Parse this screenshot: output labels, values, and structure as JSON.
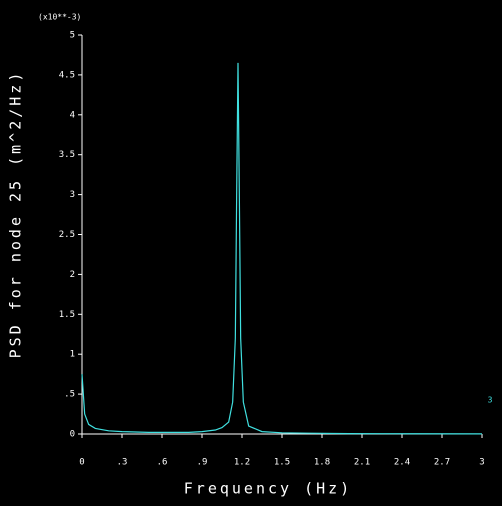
{
  "chart_data": {
    "type": "line",
    "ylabel": "PSD for node 25 (m^2/Hz)",
    "xlabel": "Frequency (Hz)",
    "multiplier": "(x10**-3)",
    "annotation": "3",
    "color": "#40e0e0",
    "x": [
      0,
      0.02,
      0.05,
      0.1,
      0.2,
      0.3,
      0.5,
      0.8,
      0.9,
      1.0,
      1.05,
      1.1,
      1.13,
      1.15,
      1.16,
      1.17,
      1.18,
      1.19,
      1.21,
      1.25,
      1.35,
      1.5,
      1.7,
      2.0,
      2.5,
      3.0
    ],
    "values": [
      0.75,
      0.25,
      0.12,
      0.07,
      0.04,
      0.03,
      0.02,
      0.02,
      0.03,
      0.05,
      0.08,
      0.15,
      0.4,
      1.2,
      3.0,
      4.65,
      3.0,
      1.2,
      0.4,
      0.1,
      0.03,
      0.015,
      0.01,
      0.005,
      0.003,
      0.002
    ],
    "xlim": [
      0,
      3
    ],
    "ylim": [
      0,
      5
    ],
    "xticks": [
      0,
      {
        "value": 0.3,
        "label": ".3"
      },
      {
        "value": 0.6,
        "label": ".6"
      },
      {
        "value": 0.9,
        "label": ".9"
      },
      1.2,
      1.5,
      1.8,
      2.1,
      2.4,
      2.7,
      3
    ],
    "yticks": [
      0,
      {
        "value": 0.5,
        "label": ".5"
      },
      1,
      1.5,
      2,
      2.5,
      3,
      3.5,
      4,
      4.5,
      5
    ]
  }
}
